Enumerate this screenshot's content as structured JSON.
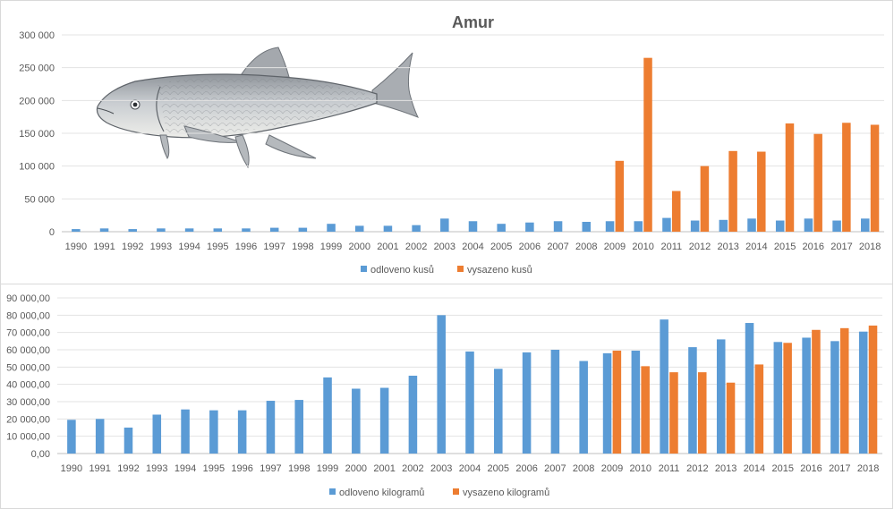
{
  "chart_data": [
    {
      "type": "bar",
      "title": "Amur",
      "categories": [
        "1990",
        "1991",
        "1992",
        "1993",
        "1994",
        "1995",
        "1996",
        "1997",
        "1998",
        "1999",
        "2000",
        "2001",
        "2002",
        "2003",
        "2004",
        "2005",
        "2006",
        "2007",
        "2008",
        "2009",
        "2010",
        "2011",
        "2012",
        "2013",
        "2014",
        "2015",
        "2016",
        "2017",
        "2018"
      ],
      "ylim": [
        0,
        300000
      ],
      "yticks": [
        0,
        50000,
        100000,
        150000,
        200000,
        250000,
        300000
      ],
      "ytick_labels": [
        "0",
        "50 000",
        "100 000",
        "150 000",
        "200 000",
        "250 000",
        "300 000"
      ],
      "grid": true,
      "legend_position": "bottom",
      "series": [
        {
          "name": "odloveno kusů",
          "color": "#5b9bd5",
          "values": [
            4000,
            5000,
            4000,
            5000,
            5000,
            5000,
            5000,
            6000,
            6000,
            12000,
            9000,
            9000,
            10000,
            20000,
            16000,
            12000,
            14000,
            16000,
            15000,
            16000,
            16000,
            21000,
            17000,
            18000,
            20000,
            17000,
            20000,
            17000,
            20000
          ]
        },
        {
          "name": "vysazeno kusů",
          "color": "#ed7d31",
          "values": [
            null,
            null,
            null,
            null,
            null,
            null,
            null,
            null,
            null,
            null,
            null,
            null,
            null,
            null,
            null,
            null,
            null,
            null,
            null,
            108000,
            265000,
            62000,
            100000,
            123000,
            122000,
            165000,
            149000,
            166000,
            163000
          ]
        }
      ]
    },
    {
      "type": "bar",
      "title": "",
      "categories": [
        "1990",
        "1991",
        "1992",
        "1993",
        "1994",
        "1995",
        "1996",
        "1997",
        "1998",
        "1999",
        "2000",
        "2001",
        "2002",
        "2003",
        "2004",
        "2005",
        "2006",
        "2007",
        "2008",
        "2009",
        "2010",
        "2011",
        "2012",
        "2013",
        "2014",
        "2015",
        "2016",
        "2017",
        "2018"
      ],
      "ylim": [
        0,
        90000
      ],
      "yticks": [
        0,
        10000,
        20000,
        30000,
        40000,
        50000,
        60000,
        70000,
        80000,
        90000
      ],
      "ytick_labels": [
        "0,00",
        "10 000,00",
        "20 000,00",
        "30 000,00",
        "40 000,00",
        "50 000,00",
        "60 000,00",
        "70 000,00",
        "80 000,00",
        "90 000,00"
      ],
      "grid": true,
      "legend_position": "bottom",
      "series": [
        {
          "name": "odloveno kilogramů",
          "color": "#5b9bd5",
          "values": [
            19500,
            20000,
            15000,
            22500,
            25500,
            25000,
            25000,
            30500,
            31000,
            44000,
            37500,
            38000,
            45000,
            80000,
            59000,
            49000,
            58500,
            60000,
            53500,
            58000,
            59500,
            77500,
            61500,
            66000,
            75500,
            64500,
            67000,
            65000,
            70500
          ]
        },
        {
          "name": "vysazeno kilogramů",
          "color": "#ed7d31",
          "values": [
            null,
            null,
            null,
            null,
            null,
            null,
            null,
            null,
            null,
            null,
            null,
            null,
            null,
            null,
            null,
            null,
            null,
            null,
            null,
            59500,
            50500,
            47000,
            47000,
            41000,
            51500,
            64000,
            71500,
            72500,
            74000
          ]
        }
      ]
    }
  ],
  "illustration": {
    "icon": "grass-carp-fish-icon"
  }
}
